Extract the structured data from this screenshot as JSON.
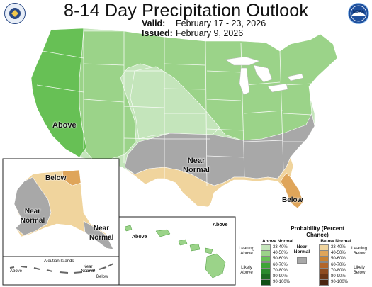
{
  "header": {
    "title": "8-14 Day Precipitation Outlook",
    "valid_label": "Valid:",
    "valid_value": "February 17 - 23, 2026",
    "issued_label": "Issued:",
    "issued_value": "February 9, 2026"
  },
  "logos": {
    "left": "doc-seal-icon",
    "right": "noaa-logo-icon",
    "noaa_text": "NOAA"
  },
  "map": {
    "colors": {
      "above_33_40": "#c4e5bb",
      "above_40_50": "#9bd389",
      "above_50_60": "#67c055",
      "near_normal": "#a8a8a8",
      "below_33_40": "#f0d49d",
      "below_40_50": "#dfa55a",
      "state_line": "#ffffff",
      "water": "#ffffff"
    },
    "labels": {
      "conus_above": "Above",
      "conus_near_normal": "Near Normal",
      "florida_below": "Below",
      "alaska_below": "Below",
      "alaska_near_normal": "Near Normal",
      "alaska_se_near_normal": "Near Normal",
      "hawaii_above_left": "Above",
      "hawaii_above_right": "Above",
      "aleutian_title": "Aleutian Islands",
      "aleutian_above": "Above",
      "aleutian_near_normal": "Near Normal",
      "aleutian_below": "Below"
    }
  },
  "legend": {
    "title": "Probability (Percent Chance)",
    "above_header": "Above Normal",
    "near_header": "Near Normal",
    "below_header": "Below Normal",
    "leaning_above": "Leaning Above",
    "likely_above": "Likely Above",
    "leaning_below": "Leaning Below",
    "likely_below": "Likely Below",
    "bins": [
      "33-40%",
      "40-50%",
      "50-60%",
      "60-70%",
      "70-80%",
      "80-90%",
      "90-100%"
    ],
    "above_colors": [
      "#c4e5bb",
      "#9bd389",
      "#67c055",
      "#3ea437",
      "#2b8a2d",
      "#1e6b22",
      "#0f4f15"
    ],
    "near_color": "#a8a8a8",
    "below_colors": [
      "#f0d49d",
      "#dfa55a",
      "#c98233",
      "#b3662a",
      "#8e4b1f",
      "#6b3616",
      "#4a240f"
    ]
  }
}
